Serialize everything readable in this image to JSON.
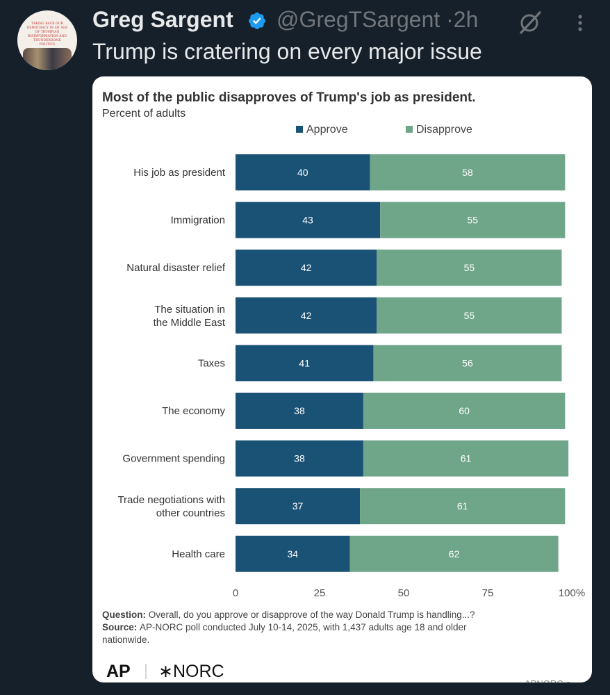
{
  "tweet": {
    "author_name": "Greg Sargent",
    "handle": "@GregTSargent",
    "time": "2h",
    "separator": "·",
    "text": "Trump is cratering on every major issue",
    "avatar_text": "TAKING BACK OUR DEMOCRACY IN AN AGE OF TRUMPIAN DISINFORMATION AND THUNDERDOME POLITICS"
  },
  "chart_data": {
    "type": "bar",
    "stacked": true,
    "orientation": "horizontal",
    "title": "Most of the public disapproves of Trump's job as president.",
    "subtitle": "Percent of adults",
    "categories": [
      "His job as president",
      "Immigration",
      "Natural disaster relief",
      "The situation in the Middle East",
      "Taxes",
      "The economy",
      "Government spending",
      "Trade negotiations with other countries",
      "Health care"
    ],
    "category_lines": [
      [
        "His job as president"
      ],
      [
        "Immigration"
      ],
      [
        "Natural disaster relief"
      ],
      [
        "The situation in",
        "the Middle East"
      ],
      [
        "Taxes"
      ],
      [
        "The economy"
      ],
      [
        "Government spending"
      ],
      [
        "Trade negotiations with",
        "other countries"
      ],
      [
        "Health care"
      ]
    ],
    "series": [
      {
        "name": "Approve",
        "color": "#1a5276",
        "values": [
          40,
          43,
          42,
          42,
          41,
          38,
          38,
          37,
          34
        ]
      },
      {
        "name": "Disapprove",
        "color": "#6fa589",
        "values": [
          58,
          55,
          55,
          55,
          56,
          60,
          61,
          61,
          62
        ]
      }
    ],
    "xlim": [
      0,
      100
    ],
    "xticks": [
      0,
      25,
      50,
      75,
      100
    ],
    "xtick_labels": [
      "0",
      "25",
      "50",
      "75",
      "100%"
    ],
    "legend_position": "top",
    "grid": false,
    "note": {
      "question_label": "Question:",
      "question_text": "Overall, do you approve or disapprove of the way Donald Trump is handling...?",
      "source_label": "Source:",
      "source_text_1": "AP-NORC poll conducted July 10-14, 2025, with 1,437 adults age 18 and older",
      "source_text_2": "nationwide."
    },
    "logos": {
      "ap": "AP",
      "norc": "∗NORC",
      "corner": "APNORC.o"
    }
  }
}
